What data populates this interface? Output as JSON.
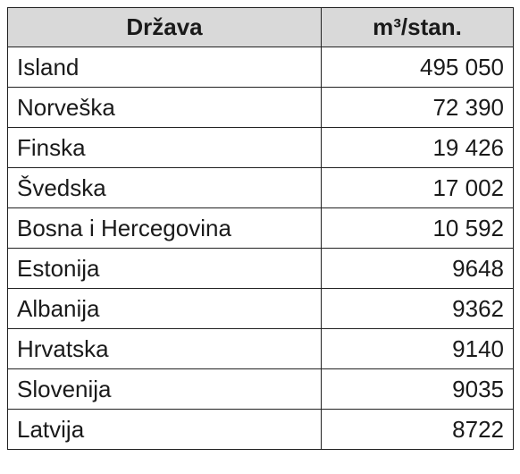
{
  "table": {
    "header": [
      "Država",
      "m³/stan."
    ],
    "rows": [
      [
        "Island",
        "495 050"
      ],
      [
        "Norveška",
        "72 390"
      ],
      [
        "Finska",
        "19 426"
      ],
      [
        "Švedska",
        "17 002"
      ],
      [
        "Bosna i Hercegovina",
        "10 592"
      ],
      [
        "Estonija",
        "9648"
      ],
      [
        "Albanija",
        "9362"
      ],
      [
        "Hrvatska",
        "9140"
      ],
      [
        "Slovenija",
        "9035"
      ],
      [
        "Latvija",
        "8722"
      ]
    ]
  }
}
